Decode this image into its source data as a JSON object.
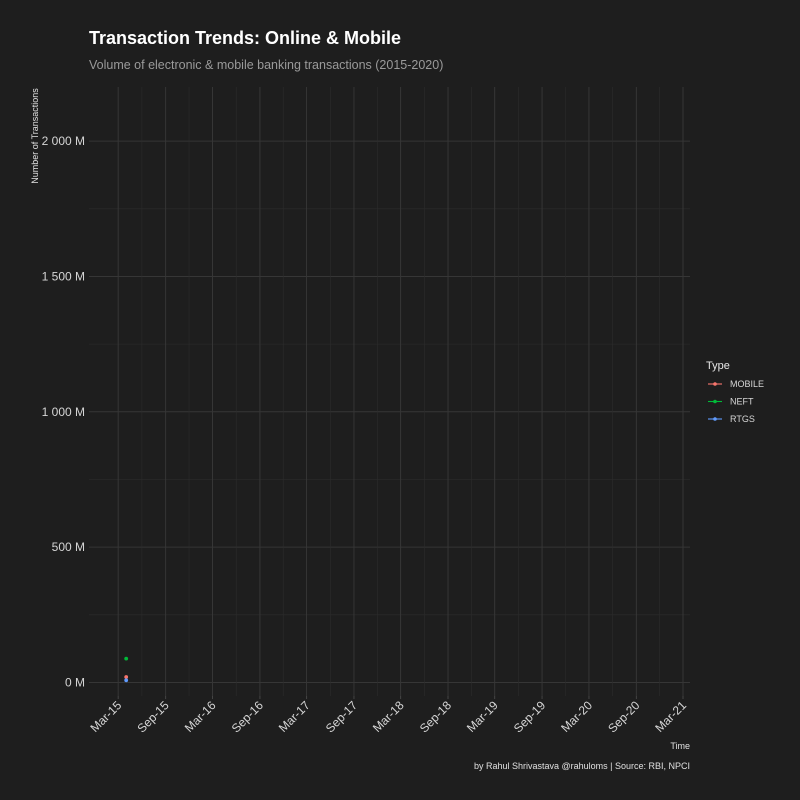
{
  "chart_data": {
    "type": "line",
    "title": "Transaction Trends: Online & Mobile",
    "subtitle": "Volume of electronic & mobile banking transactions (2015-2020)",
    "xlabel": "Time",
    "ylabel": "Number of Transactions",
    "caption": "by Rahul Shrivastava @rahuloms | Source: RBI, NPCI",
    "x_ticks": [
      {
        "date": "2015-03-01",
        "label": "Mar-15"
      },
      {
        "date": "2015-09-01",
        "label": "Sep-15"
      },
      {
        "date": "2016-03-01",
        "label": "Mar-16"
      },
      {
        "date": "2016-09-01",
        "label": "Sep-16"
      },
      {
        "date": "2017-03-01",
        "label": "Mar-17"
      },
      {
        "date": "2017-09-01",
        "label": "Sep-17"
      },
      {
        "date": "2018-03-01",
        "label": "Mar-18"
      },
      {
        "date": "2018-09-01",
        "label": "Sep-18"
      },
      {
        "date": "2019-03-01",
        "label": "Mar-19"
      },
      {
        "date": "2019-09-01",
        "label": "Sep-19"
      },
      {
        "date": "2020-03-01",
        "label": "Mar-20"
      },
      {
        "date": "2020-09-01",
        "label": "Sep-20"
      },
      {
        "date": "2021-03-01",
        "label": "Mar-21"
      }
    ],
    "xlim": [
      "2015-01-01",
      "2021-03-01"
    ],
    "y_ticks": [
      {
        "value": 0,
        "label": "0 M"
      },
      {
        "value": 500,
        "label": "500 M"
      },
      {
        "value": 1000,
        "label": "1 000 M"
      },
      {
        "value": 1500,
        "label": "1 500 M"
      },
      {
        "value": 2000,
        "label": "2 000 M"
      }
    ],
    "ylim": [
      -50,
      2200
    ],
    "y_unit": "M",
    "grid": true,
    "legend": {
      "title": "Type",
      "position": "right"
    },
    "series": [
      {
        "name": "MOBILE",
        "color": "#f8766d",
        "points": [
          {
            "x": "2015-04-01",
            "y": 20
          }
        ]
      },
      {
        "name": "NEFT",
        "color": "#00ba38",
        "points": [
          {
            "x": "2015-04-01",
            "y": 88
          }
        ]
      },
      {
        "name": "RTGS",
        "color": "#619cff",
        "points": [
          {
            "x": "2015-04-01",
            "y": 8
          }
        ]
      }
    ]
  }
}
